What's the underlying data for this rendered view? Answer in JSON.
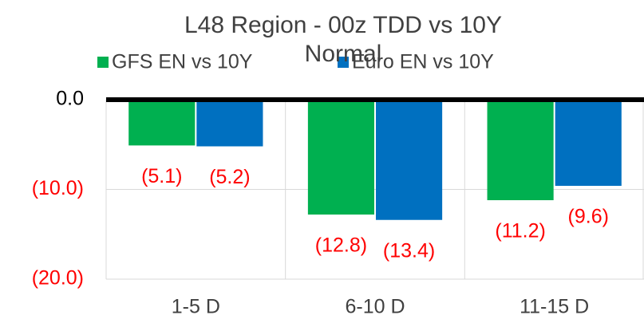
{
  "chart_data": {
    "type": "bar",
    "title": "L48 Region - 00z TDD vs 10Y Normal",
    "categories": [
      "1-5 D",
      "6-10 D",
      "11-15 D"
    ],
    "series": [
      {
        "name": "GFS EN vs 10Y",
        "color": "#00b050",
        "values": [
          -5.1,
          -12.8,
          -11.2
        ],
        "value_labels": [
          "(5.1)",
          "(12.8)",
          "(11.2)"
        ]
      },
      {
        "name": "Euro EN vs 10Y",
        "color": "#0070c0",
        "values": [
          -5.2,
          -13.4,
          -9.6
        ],
        "value_labels": [
          "(5.2)",
          "(13.4)",
          "(9.6)"
        ]
      }
    ],
    "ylim": [
      -20,
      0
    ],
    "yticks": [
      {
        "value": 0,
        "label": "0.0"
      },
      {
        "value": -10,
        "label": "(10.0)"
      },
      {
        "value": -20,
        "label": "(20.0)"
      }
    ],
    "grid": true
  }
}
